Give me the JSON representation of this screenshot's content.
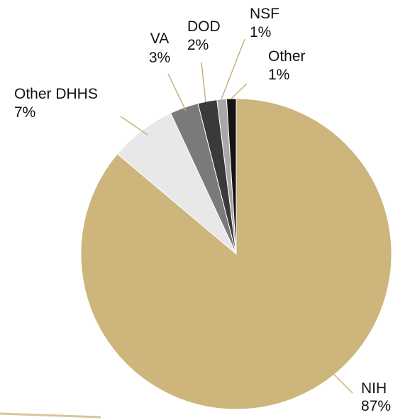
{
  "chart_data": {
    "type": "pie",
    "title": "",
    "start": "top",
    "direction": "clockwise",
    "slices": [
      {
        "name": "NIH",
        "value": 87,
        "label_pct": "87%",
        "color": "#CDB57B"
      },
      {
        "name": "Other DHHS",
        "value": 7,
        "label_pct": "7%",
        "color": "#E8E8E8"
      },
      {
        "name": "VA",
        "value": 3,
        "label_pct": "3%",
        "color": "#7A7A7A"
      },
      {
        "name": "DOD",
        "value": 2,
        "label_pct": "2%",
        "color": "#3A3A3A"
      },
      {
        "name": "NSF",
        "value": 1,
        "label_pct": "1%",
        "color": "#A8A8A8"
      },
      {
        "name": "Other",
        "value": 1,
        "label_pct": "1%",
        "color": "#141414"
      }
    ],
    "leader_color": "#C9B27A",
    "border_color": "#FFFFFF"
  }
}
